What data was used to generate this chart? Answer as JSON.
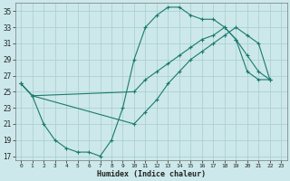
{
  "xlabel": "Humidex (Indice chaleur)",
  "bg_color": "#cce8ea",
  "grid_color": "#a8cccc",
  "line_color": "#1a7a6e",
  "xlim": [
    -0.5,
    23.5
  ],
  "ylim": [
    16.5,
    36.0
  ],
  "yticks": [
    17,
    19,
    21,
    23,
    25,
    27,
    29,
    31,
    33,
    35
  ],
  "xticks": [
    0,
    1,
    2,
    3,
    4,
    5,
    6,
    7,
    8,
    9,
    10,
    11,
    12,
    13,
    14,
    15,
    16,
    17,
    18,
    19,
    20,
    21,
    22,
    23
  ],
  "line1_x": [
    0,
    1,
    2,
    3,
    4,
    5,
    6,
    7,
    8,
    9,
    10,
    11,
    12,
    13,
    14,
    15,
    16,
    17,
    18,
    19,
    20,
    21,
    22
  ],
  "line1_y": [
    26.0,
    24.5,
    21.0,
    19.0,
    18.0,
    17.5,
    17.5,
    17.0,
    19.0,
    23.0,
    29.0,
    33.0,
    34.5,
    35.5,
    35.5,
    34.5,
    34.0,
    34.0,
    33.0,
    31.5,
    29.5,
    27.5,
    26.5
  ],
  "line2_x": [
    0,
    1,
    10,
    11,
    12,
    13,
    14,
    15,
    16,
    17,
    18,
    19,
    20,
    21,
    22
  ],
  "line2_y": [
    26.0,
    24.5,
    25.0,
    26.5,
    27.5,
    28.5,
    29.5,
    30.5,
    31.5,
    32.0,
    33.0,
    31.5,
    27.5,
    26.5,
    26.5
  ],
  "line3_x": [
    0,
    1,
    10,
    11,
    12,
    13,
    14,
    15,
    16,
    17,
    18,
    19,
    20,
    21,
    22
  ],
  "line3_y": [
    26.0,
    24.5,
    21.0,
    22.5,
    24.0,
    26.0,
    27.5,
    29.0,
    30.0,
    31.0,
    32.0,
    33.0,
    32.0,
    31.0,
    26.5
  ]
}
